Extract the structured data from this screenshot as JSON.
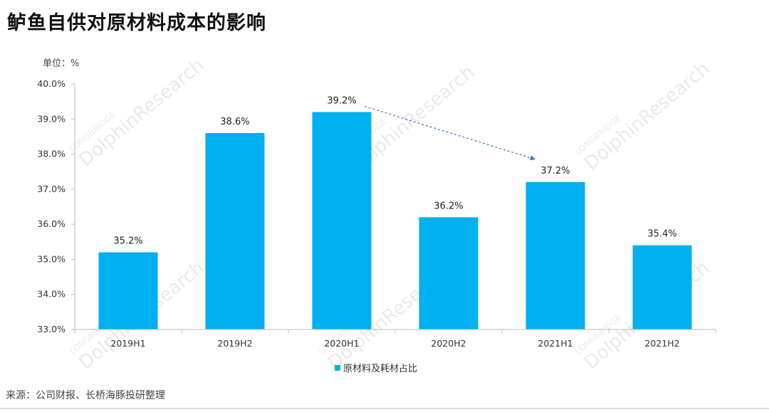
{
  "title": "鲈鱼自供对原材料成本的影响",
  "source": "来源：公司财报、长桥海豚投研整理",
  "watermark": {
    "top": "LONGBRIDGE",
    "main": "DolphinResearch"
  },
  "colors": {
    "bar": "#00b0f0",
    "arrow": "#4472c4",
    "axis": "#bfbfbf"
  },
  "chart_data": {
    "type": "bar",
    "unit_label": "单位：%",
    "categories": [
      "2019H1",
      "2019H2",
      "2020H1",
      "2020H2",
      "2021H1",
      "2021H2"
    ],
    "series": [
      {
        "name": "原材料及耗材占比",
        "values": [
          35.2,
          38.6,
          39.2,
          36.2,
          37.2,
          35.4
        ]
      }
    ],
    "data_labels": [
      "35.2%",
      "38.6%",
      "39.2%",
      "36.2%",
      "37.2%",
      "35.4%"
    ],
    "ylim": [
      33.0,
      40.0
    ],
    "yticks": [
      "33.0%",
      "34.0%",
      "35.0%",
      "36.0%",
      "37.0%",
      "38.0%",
      "39.0%",
      "40.0%"
    ],
    "grid": false,
    "legend_position": "bottom",
    "annotation": {
      "type": "dashed-arrow",
      "from": "2020H1",
      "to": "2021H1"
    }
  }
}
